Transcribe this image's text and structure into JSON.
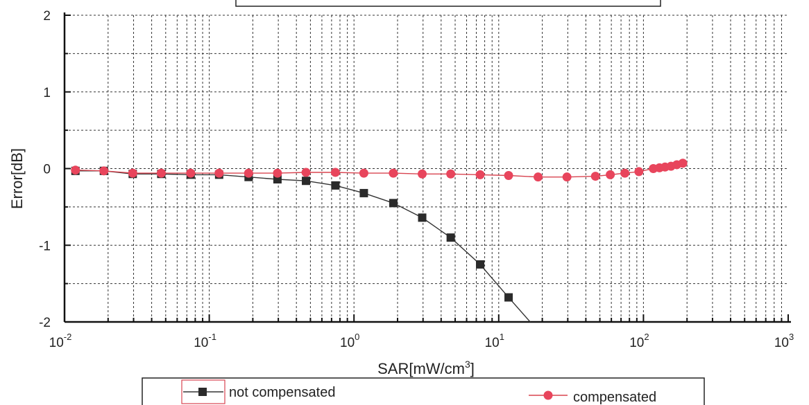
{
  "chart_data": {
    "type": "line",
    "title": "",
    "xlabel": "SAR[mW/cm3]",
    "ylabel": "Error[dB]",
    "x_scale": "log",
    "xlim": [
      0.01,
      1000
    ],
    "ylim": [
      -2,
      2
    ],
    "x_ticks": [
      {
        "base": "10",
        "exp": "-2"
      },
      {
        "base": "10",
        "exp": "-1"
      },
      {
        "base": "10",
        "exp": "0"
      },
      {
        "base": "10",
        "exp": "1"
      },
      {
        "base": "10",
        "exp": "2"
      },
      {
        "base": "10",
        "exp": "3"
      }
    ],
    "x_tick_values": [
      0.01,
      0.1,
      1,
      10,
      100,
      1000
    ],
    "y_ticks": [
      "2",
      "1",
      "0",
      "-1",
      "-2"
    ],
    "y_tick_values": [
      2,
      1,
      0,
      -1,
      -2
    ],
    "grid": true,
    "legend_placement": "bottom",
    "series": [
      {
        "name": "not compensated",
        "color": "#2b2b2b",
        "line_color": "#333333",
        "marker": "square",
        "x": [
          0.0119,
          0.0187,
          0.0296,
          0.0466,
          0.0744,
          0.117,
          0.187,
          0.296,
          0.466,
          0.744,
          1.17,
          1.87,
          2.96,
          4.66,
          7.44,
          11.7,
          16.5
        ],
        "y": [
          -0.03,
          -0.03,
          -0.07,
          -0.07,
          -0.08,
          -0.08,
          -0.11,
          -0.14,
          -0.16,
          -0.22,
          -0.32,
          -0.45,
          -0.64,
          -0.9,
          -1.25,
          -1.68,
          -2.0
        ]
      },
      {
        "name": "compensated",
        "color": "#e8455c",
        "line_color": "#d8434f",
        "marker": "circle",
        "x": [
          0.0119,
          0.0187,
          0.0296,
          0.0466,
          0.0744,
          0.117,
          0.187,
          0.296,
          0.466,
          0.744,
          1.17,
          1.87,
          2.96,
          4.66,
          7.44,
          11.7,
          18.7,
          29.6,
          46.6,
          59.0,
          74.4,
          93.0,
          117,
          129,
          141,
          155,
          170,
          187
        ],
        "y": [
          -0.02,
          -0.03,
          -0.06,
          -0.06,
          -0.06,
          -0.06,
          -0.06,
          -0.06,
          -0.05,
          -0.05,
          -0.06,
          -0.06,
          -0.07,
          -0.07,
          -0.08,
          -0.09,
          -0.11,
          -0.11,
          -0.1,
          -0.08,
          -0.06,
          -0.04,
          0.0,
          0.01,
          0.02,
          0.03,
          0.05,
          0.07
        ]
      }
    ]
  }
}
